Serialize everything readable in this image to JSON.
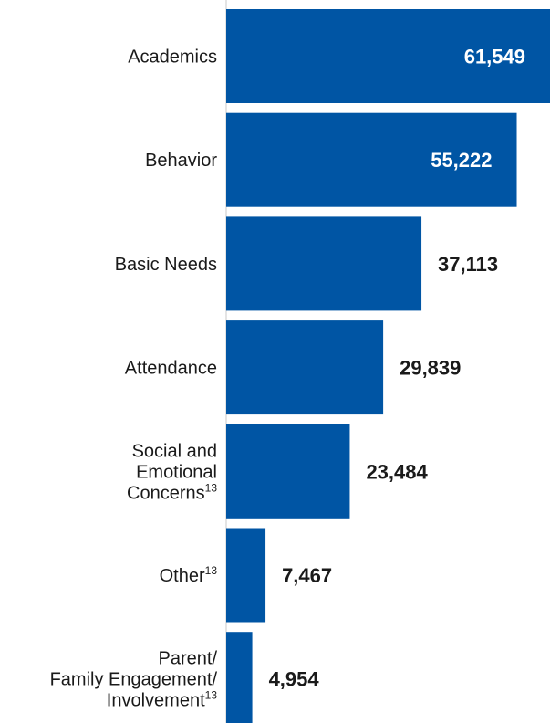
{
  "chart_data": {
    "type": "bar",
    "orientation": "horizontal",
    "categories": [
      {
        "lines": [
          "Academics"
        ],
        "note": ""
      },
      {
        "lines": [
          "Behavior"
        ],
        "note": ""
      },
      {
        "lines": [
          "Basic Needs"
        ],
        "note": ""
      },
      {
        "lines": [
          "Attendance"
        ],
        "note": ""
      },
      {
        "lines": [
          "Social and",
          "Emotional",
          "Concerns"
        ],
        "note": "13"
      },
      {
        "lines": [
          "Other"
        ],
        "note": "13"
      },
      {
        "lines": [
          "Parent/",
          "Family Engagement/",
          "Involvement"
        ],
        "note": "13"
      }
    ],
    "values": [
      61549,
      55222,
      37113,
      29839,
      23484,
      7467,
      4954
    ],
    "value_labels": [
      "61,549",
      "55,222",
      "37,113",
      "29,839",
      "23,484",
      "7,467",
      "4,954"
    ],
    "xlim": [
      0,
      61549
    ],
    "title": "",
    "xlabel": "",
    "ylabel": "",
    "grid": false,
    "legend": "none",
    "colors": {
      "bar": "#0055a4",
      "label_inside": "#ffffff",
      "label_outside": "#1a1a1a",
      "axis": "#c8c8c8"
    }
  }
}
